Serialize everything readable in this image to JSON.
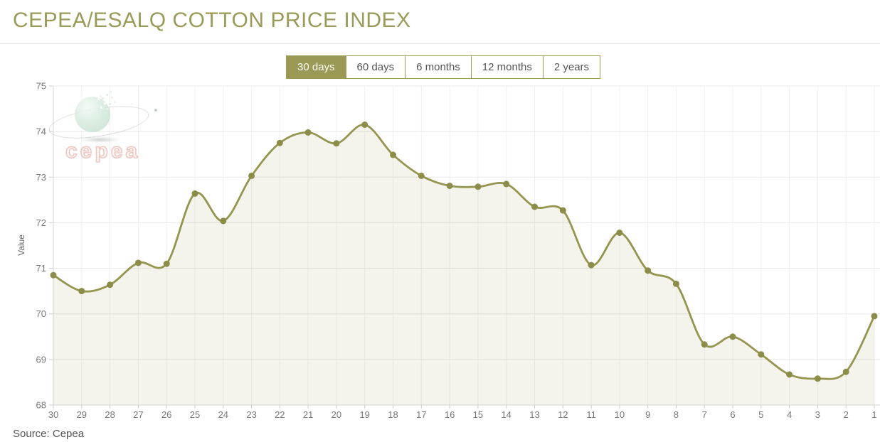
{
  "header": {
    "title": "CEPEA/ESALQ COTTON PRICE INDEX"
  },
  "tabs": {
    "items": [
      {
        "label": "30 days",
        "active": true
      },
      {
        "label": "60 days",
        "active": false
      },
      {
        "label": "6 months",
        "active": false
      },
      {
        "label": "12 months",
        "active": false
      },
      {
        "label": "2 years",
        "active": false
      }
    ]
  },
  "watermark": {
    "text": "cepea"
  },
  "source": {
    "label": "Source: Cepea"
  },
  "colors": {
    "accent": "#9a9a56",
    "title": "#9a9a59",
    "line": "#94954f",
    "marker": "#8b8d48",
    "area_fill": "rgba(148,150,80,0.10)",
    "grid_horizontal": "#e8e8e8",
    "grid_vertical": "#f0f0f0",
    "axis": "#d6d6d6",
    "tick": "#cccccc",
    "tick_label": "#777777",
    "axis_title": "#666666"
  },
  "chart_data": {
    "type": "area",
    "title": "CEPEA/ESALQ COTTON PRICE INDEX",
    "xlabel": "",
    "ylabel": "Value",
    "ylim": [
      68,
      75
    ],
    "y_ticks": [
      68,
      69,
      70,
      71,
      72,
      73,
      74,
      75
    ],
    "grid": true,
    "legend": false,
    "x": [
      30,
      29,
      28,
      27,
      26,
      25,
      24,
      23,
      22,
      21,
      20,
      19,
      18,
      17,
      16,
      15,
      14,
      13,
      12,
      11,
      10,
      9,
      8,
      7,
      6,
      5,
      4,
      3,
      2,
      1
    ],
    "values": [
      70.85,
      70.5,
      70.64,
      71.12,
      71.1,
      72.64,
      72.04,
      73.03,
      73.75,
      73.98,
      73.74,
      74.15,
      73.49,
      73.03,
      72.81,
      72.79,
      72.85,
      72.35,
      72.27,
      71.07,
      71.78,
      70.95,
      70.66,
      69.33,
      69.5,
      69.11,
      68.67,
      68.58,
      68.73,
      69.95
    ]
  }
}
